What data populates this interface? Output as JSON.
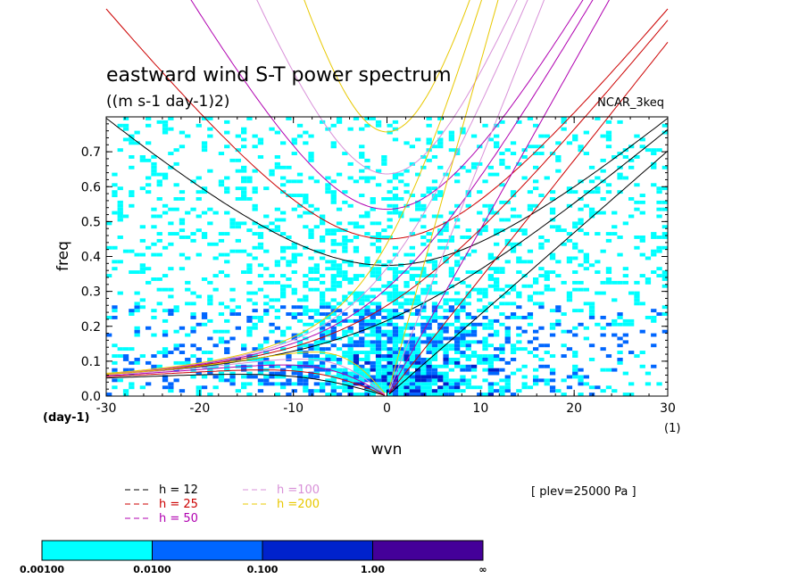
{
  "chart_data": {
    "type": "heatmap",
    "title": "eastward wind S-T power spectrum",
    "subtitle": "((m s-1 day-1)2)",
    "model_label": "NCAR_3keq",
    "xlabel": "wvn",
    "ylabel": "freq",
    "x_unit_label": "(1)",
    "y_unit_label": "(day-1)",
    "xlim": [
      -30,
      30
    ],
    "ylim": [
      0,
      0.8
    ],
    "xticks": [
      -30,
      -20,
      -10,
      0,
      10,
      20,
      30
    ],
    "xtick_labels": [
      "-30",
      "-20",
      "-10",
      "0",
      "10",
      "20",
      "30"
    ],
    "yticks": [
      0,
      0.1,
      0.2,
      0.3,
      0.4,
      0.5,
      0.6,
      0.7
    ],
    "ytick_labels": [
      "0.0",
      "0.1",
      "0.2",
      "0.3",
      "0.4",
      "0.5",
      "0.6",
      "0.7"
    ],
    "plev_label": "[ plev=25000 Pa ]",
    "series": [
      {
        "name": "h = 12",
        "equivalent_depth": 12,
        "color": "#000000"
      },
      {
        "name": "h = 25",
        "equivalent_depth": 25,
        "color": "#cc0000"
      },
      {
        "name": "h = 50",
        "equivalent_depth": 50,
        "color": "#b000b0"
      },
      {
        "name": "h =100",
        "equivalent_depth": 100,
        "color": "#d890d8"
      },
      {
        "name": "h =200",
        "equivalent_depth": 200,
        "color": "#e8c800"
      }
    ],
    "colorbar": {
      "levels": [
        "0.00100",
        "0.0100",
        "0.100",
        "1.00",
        "∞"
      ],
      "colors": [
        "#00ffff",
        "#0066ff",
        "#0022cc",
        "#440099"
      ]
    }
  }
}
